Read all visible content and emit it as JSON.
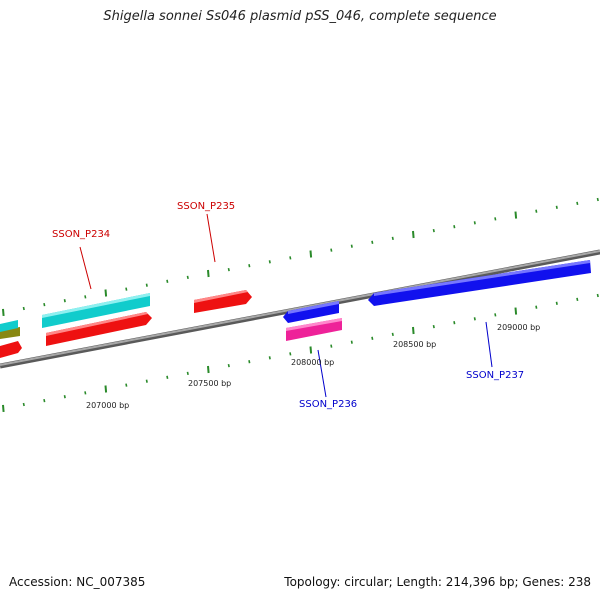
{
  "title": "Shigella sonnei Ss046 plasmid pSS_046, complete sequence",
  "footer": {
    "accession": "Accession: NC_007385",
    "summary": "Topology: circular; Length: 214,396 bp; Genes: 238"
  },
  "colors": {
    "backbone": "#8a8a8a",
    "tick": "#2a8a2a",
    "forward_gene_label": "#cc0000",
    "reverse_gene_label": "#0000cc",
    "red_feature": "#ee1111",
    "cyan_feature": "#11cccc",
    "blue_feature": "#1111ee",
    "magenta_feature": "#ee2299",
    "olive_feature": "#888811"
  },
  "gene_labels": [
    {
      "id": "sson_p234",
      "text": "SSON_P234",
      "color": "#cc0000"
    },
    {
      "id": "sson_p235",
      "text": "SSON_P235",
      "color": "#cc0000"
    },
    {
      "id": "sson_p236",
      "text": "SSON_P236",
      "color": "#0000cc"
    },
    {
      "id": "sson_p237",
      "text": "SSON_P237",
      "color": "#0000cc"
    }
  ],
  "bp_labels": [
    "207000 bp",
    "207500 bp",
    "208000 bp",
    "208500 bp",
    "209000 bp"
  ]
}
